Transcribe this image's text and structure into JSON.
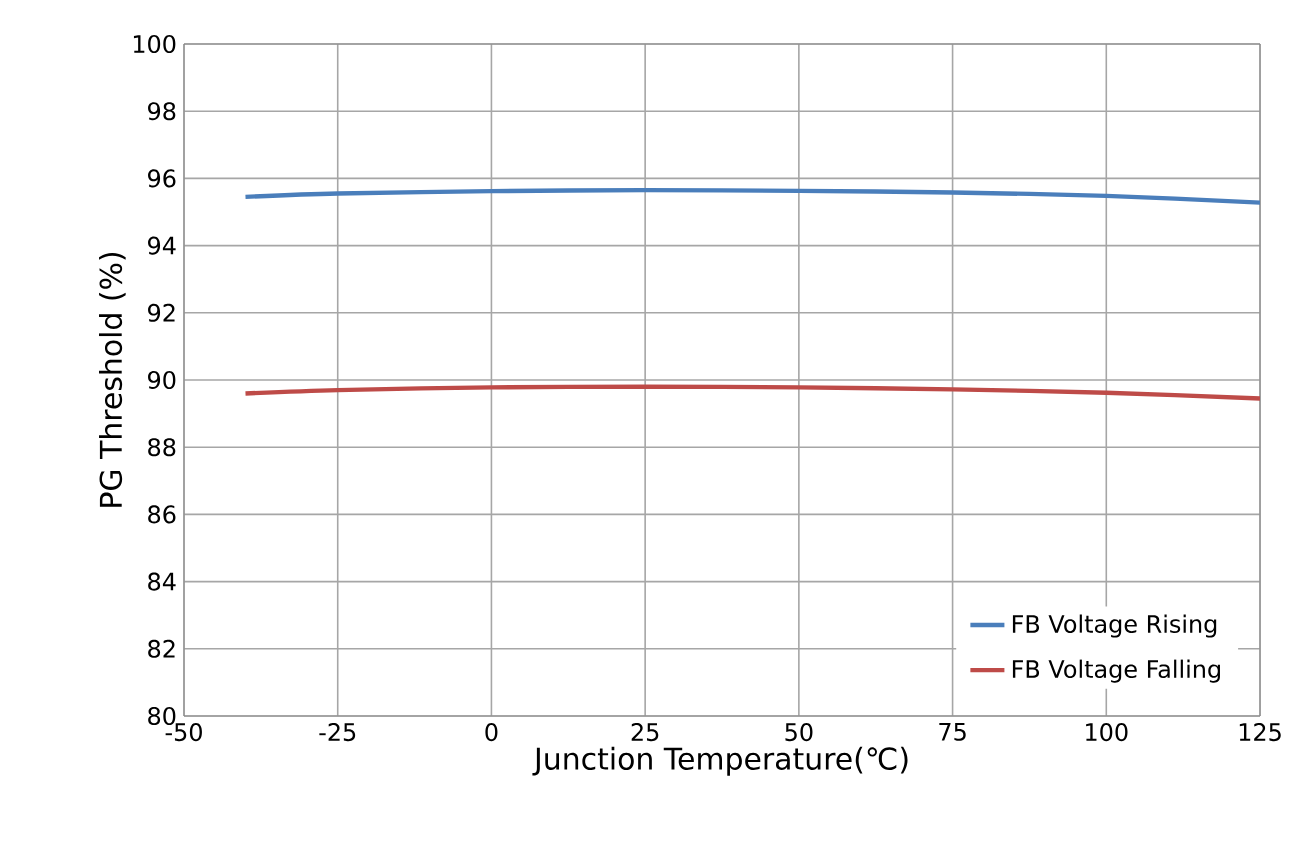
{
  "chart_data": {
    "type": "line",
    "xlabel": "Junction Temperature(℃)",
    "ylabel": "PG Threshold (%)",
    "x": [
      -40,
      -25,
      0,
      25,
      50,
      75,
      100,
      125
    ],
    "series": [
      {
        "name": "FB Voltage Rising",
        "color": "#4a7ebb",
        "values": [
          95.45,
          95.55,
          95.62,
          95.65,
          95.63,
          95.58,
          95.48,
          95.28
        ]
      },
      {
        "name": "FB Voltage Falling",
        "color": "#be4b48",
        "values": [
          89.6,
          89.7,
          89.78,
          89.8,
          89.78,
          89.72,
          89.62,
          89.45
        ]
      }
    ],
    "xlim": [
      -50,
      125
    ],
    "xticks": [
      -50,
      -25,
      0,
      25,
      50,
      75,
      100,
      125
    ],
    "ylim": [
      80,
      100
    ],
    "yticks": [
      80,
      82,
      84,
      86,
      88,
      90,
      92,
      94,
      96,
      98,
      100
    ],
    "grid": true,
    "legend": "bottom right",
    "marker": "none",
    "line_style": "solid"
  }
}
